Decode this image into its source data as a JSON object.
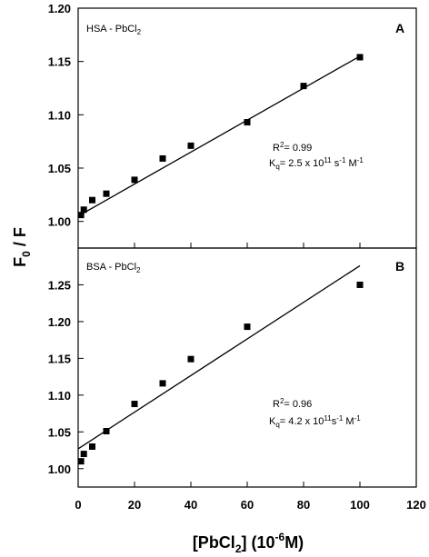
{
  "chart_data": {
    "type": "scatter",
    "layout": "two vertically stacked panels sharing the x axis",
    "ylabel": {
      "main": "F",
      "sub": "0",
      "rest": " / F"
    },
    "xlabel": {
      "pre": "[PbCl",
      "sub": "2",
      "mid": "] (10",
      "sup": "-6",
      "post": "M)"
    },
    "xlim": [
      0,
      120
    ],
    "xticks": [
      "0",
      "20",
      "40",
      "60",
      "80",
      "100",
      "120"
    ],
    "panels": [
      {
        "title": {
          "pre": "HSA - PbCl",
          "sub": "2"
        },
        "letter": "A",
        "ylim": [
          0.975,
          1.2
        ],
        "yticks": [
          "1.00",
          "1.05",
          "1.10",
          "1.15",
          "1.20"
        ],
        "marker": "filled square",
        "points": [
          {
            "x": 1,
            "y": 1.006
          },
          {
            "x": 2,
            "y": 1.011
          },
          {
            "x": 5,
            "y": 1.02
          },
          {
            "x": 10,
            "y": 1.026
          },
          {
            "x": 20,
            "y": 1.039
          },
          {
            "x": 30,
            "y": 1.059
          },
          {
            "x": 40,
            "y": 1.071
          },
          {
            "x": 60,
            "y": 1.093
          },
          {
            "x": 80,
            "y": 1.127
          },
          {
            "x": 100,
            "y": 1.154
          }
        ],
        "fit_line": [
          {
            "x": 0,
            "y": 1.005
          },
          {
            "x": 100,
            "y": 1.155
          }
        ],
        "r2": {
          "pre": "R",
          "sup": "2",
          "post": "= 0.99"
        },
        "kq": {
          "pre": "K",
          "sub": "q",
          "mid": "= 2.5 x 10",
          "sup1": "11",
          "mid2": " s",
          "sup2": "-1",
          "mid3": " M",
          "sup3": "-1"
        }
      },
      {
        "title": {
          "pre": "BSA - PbCl",
          "sub": "2"
        },
        "letter": "B",
        "ylim": [
          0.975,
          1.3
        ],
        "yticks": [
          "1.00",
          "1.05",
          "1.10",
          "1.15",
          "1.20",
          "1.25"
        ],
        "marker": "filled square",
        "points": [
          {
            "x": 1,
            "y": 1.01
          },
          {
            "x": 2,
            "y": 1.02
          },
          {
            "x": 5,
            "y": 1.03
          },
          {
            "x": 10,
            "y": 1.051
          },
          {
            "x": 20,
            "y": 1.088
          },
          {
            "x": 30,
            "y": 1.116
          },
          {
            "x": 40,
            "y": 1.149
          },
          {
            "x": 60,
            "y": 1.193
          },
          {
            "x": 100,
            "y": 1.25
          }
        ],
        "fit_line": [
          {
            "x": 0,
            "y": 1.027
          },
          {
            "x": 100,
            "y": 1.276
          }
        ],
        "r2": {
          "pre": "R",
          "sup": "2",
          "post": "= 0.96"
        },
        "kq": {
          "pre": "K",
          "sub": "q",
          "mid": "= 4.2 x 10",
          "sup1": "11",
          "mid2": "s",
          "sup2": "-1",
          "mid3": " M",
          "sup3": "-1"
        }
      }
    ]
  }
}
